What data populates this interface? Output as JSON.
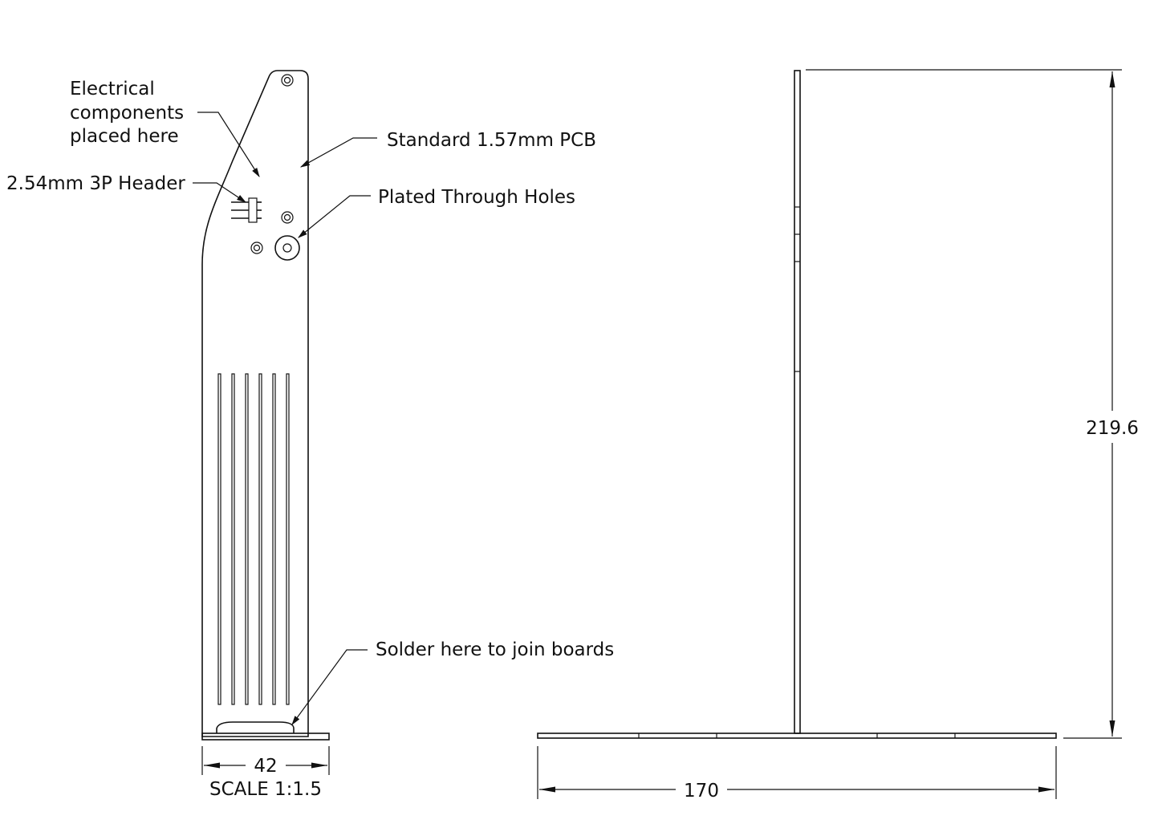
{
  "annotations": {
    "electrical_components": [
      "Electrical",
      "components",
      "placed here"
    ],
    "header": "2.54mm 3P Header",
    "pcb": "Standard 1.57mm PCB",
    "pth": "Plated Through Holes",
    "solder": "Solder here to join boards"
  },
  "dimensions": {
    "front_width": "42",
    "scale": "SCALE 1:1.5",
    "side_width": "170",
    "side_height": "219.6"
  },
  "colors": {
    "line": "#111111",
    "background": "#ffffff"
  }
}
